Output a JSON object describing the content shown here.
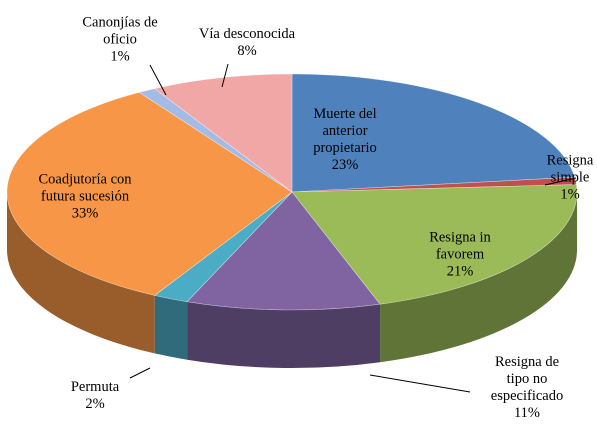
{
  "chart_data": {
    "type": "pie3d",
    "categories": [
      "Muerte del\nanterior\npropietario",
      "Resigna\nsimple",
      "Resigna in\nfavorem",
      "Resigna de\ntipo no\nespecificado",
      "Permuta",
      "Coadjutoría con\nfutura sucesión",
      "Canonjías de\noficio",
      "Vía desconocida"
    ],
    "values": [
      23,
      1,
      21,
      11,
      2,
      33,
      1,
      8
    ],
    "value_labels": [
      "23%",
      "1%",
      "21%",
      "11%",
      "2%",
      "33%",
      "1%",
      "8%"
    ],
    "colors": [
      "#4f81bd",
      "#c0504d",
      "#9bbb59",
      "#8064a2",
      "#4bacc6",
      "#f79646",
      "#a4bbe6",
      "#f2a7a7"
    ]
  }
}
